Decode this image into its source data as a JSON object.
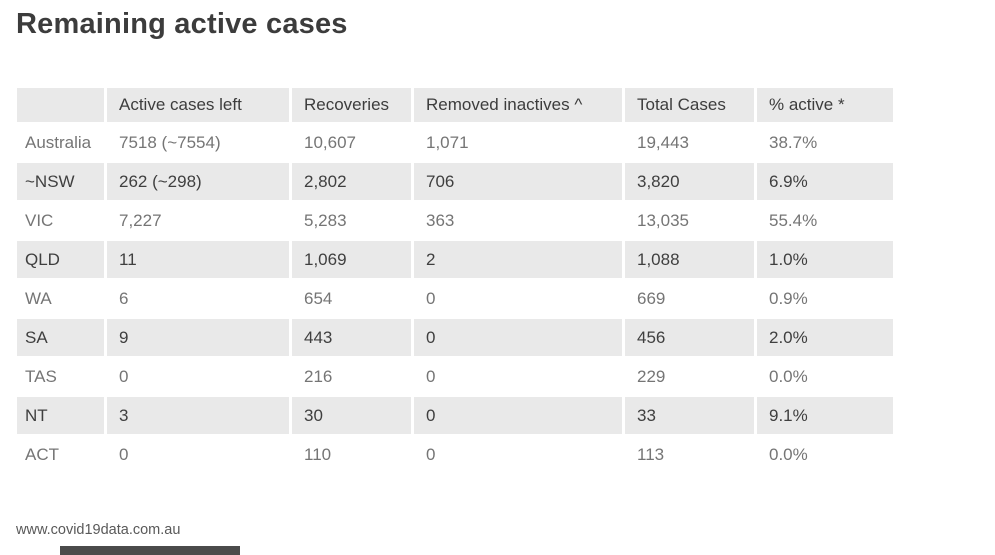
{
  "title": "Remaining active cases",
  "footer": {
    "source": "www.covid19data.com.au"
  },
  "colors": {
    "stripe_bg": "#e9e9e9",
    "title_text": "#3c3c3c",
    "light_row_text": "#757575",
    "dark_row_text": "#3f3f3f",
    "bottom_bar": "#4b4b4b"
  },
  "chart_data": {
    "type": "table",
    "title": "Remaining active cases",
    "columns": [
      "",
      "Active cases left",
      "Recoveries",
      "Removed inactives ^",
      "Total Cases",
      "% active *"
    ],
    "rows": [
      {
        "label": "Australia",
        "values": [
          "7518 (~7554)",
          "10,607",
          "1,071",
          "19,443",
          "38.7%"
        ]
      },
      {
        "label": "~NSW",
        "values": [
          "262 (~298)",
          "2,802",
          "706",
          "3,820",
          "6.9%"
        ]
      },
      {
        "label": "VIC",
        "values": [
          "7,227",
          "5,283",
          "363",
          "13,035",
          "55.4%"
        ]
      },
      {
        "label": "QLD",
        "values": [
          "11",
          "1,069",
          "2",
          "1,088",
          "1.0%"
        ]
      },
      {
        "label": "WA",
        "values": [
          "6",
          "654",
          "0",
          "669",
          "0.9%"
        ]
      },
      {
        "label": "SA",
        "values": [
          "9",
          "443",
          "0",
          "456",
          "2.0%"
        ]
      },
      {
        "label": "TAS",
        "values": [
          "0",
          "216",
          "0",
          "229",
          "0.0%"
        ]
      },
      {
        "label": "NT",
        "values": [
          "3",
          "30",
          "0",
          "33",
          "9.1%"
        ]
      },
      {
        "label": "ACT",
        "values": [
          "0",
          "110",
          "0",
          "113",
          "0.0%"
        ]
      }
    ]
  }
}
